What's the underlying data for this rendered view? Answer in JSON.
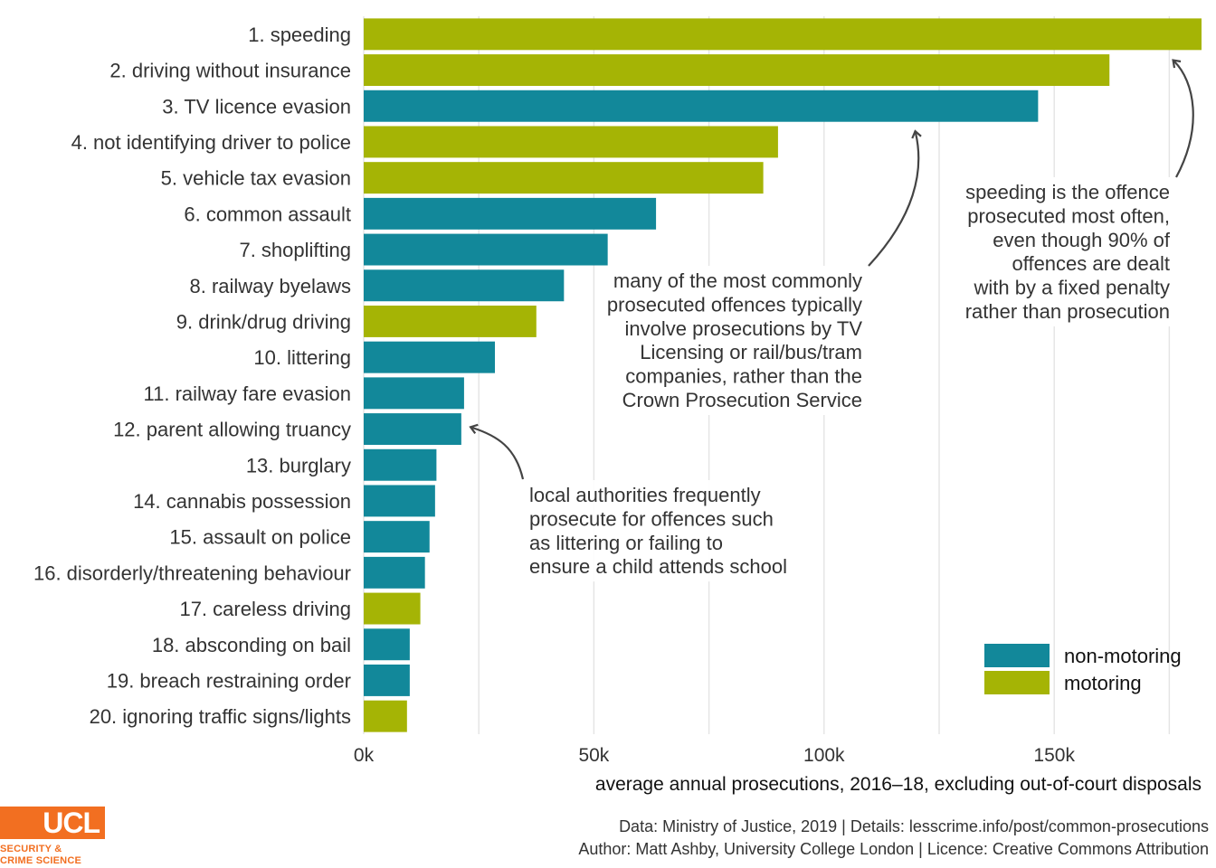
{
  "chart_data": {
    "type": "bar",
    "orientation": "horizontal",
    "categories": [
      "1. speeding",
      "2. driving without insurance",
      "3. TV licence evasion",
      "4. not identifying driver to police",
      "5. vehicle tax evasion",
      "6. common assault",
      "7. shoplifting",
      "8. railway byelaws",
      "9. drink/drug driving",
      "10. littering",
      "11. railway fare evasion",
      "12. parent allowing truancy",
      "13. burglary",
      "14. cannabis possession",
      "15. assault on police",
      "16. disorderly/threatening behaviour",
      "17. careless driving",
      "18. absconding on bail",
      "19. breach restraining order",
      "20. ignoring traffic signs/lights"
    ],
    "values": [
      182000,
      162000,
      146500,
      90000,
      86800,
      63500,
      53000,
      43500,
      37500,
      28500,
      21800,
      21200,
      15800,
      15500,
      14300,
      13300,
      12300,
      10000,
      10000,
      9400
    ],
    "groups": [
      "motoring",
      "motoring",
      "non-motoring",
      "motoring",
      "motoring",
      "non-motoring",
      "non-motoring",
      "non-motoring",
      "motoring",
      "non-motoring",
      "non-motoring",
      "non-motoring",
      "non-motoring",
      "non-motoring",
      "non-motoring",
      "non-motoring",
      "motoring",
      "non-motoring",
      "non-motoring",
      "motoring"
    ],
    "legend": {
      "placement": "bottom-right",
      "entries": [
        {
          "name": "non-motoring",
          "color": "#12889a"
        },
        {
          "name": "motoring",
          "color": "#a5b405"
        }
      ]
    },
    "xlabel": "average annual prosecutions, 2016–18, excluding out-of-court disposals",
    "xlim": [
      0,
      182000
    ],
    "xticks": [
      {
        "value": 0,
        "label": "0k"
      },
      {
        "value": 50000,
        "label": "50k"
      },
      {
        "value": 100000,
        "label": "100k"
      },
      {
        "value": 150000,
        "label": "150k"
      }
    ],
    "grid": true,
    "annotations": [
      {
        "name": "speeding",
        "lines": [
          "speeding is the offence",
          "prosecuted most often,",
          "even though 90% of",
          "offences are dealt",
          "with by a fixed penalty",
          "rather than prosecution"
        ]
      },
      {
        "name": "commonly-prosecuted",
        "lines": [
          "many of the most commonly",
          "prosecuted offences typically",
          "involve prosecutions by TV",
          "Licensing or rail/bus/tram",
          "companies, rather than the",
          "Crown Prosecution Service"
        ]
      },
      {
        "name": "local-authorities",
        "lines": [
          "local authorities frequently",
          "prosecute for offences such",
          "as littering or failing to",
          "ensure a child attends school"
        ]
      }
    ]
  },
  "caption": {
    "line1": "Data: Ministry of Justice, 2019 |  Details: lesscrime.info/post/common-prosecutions",
    "line2": "Author: Matt Ashby, University College London |  Licence: Creative Commons Attribution"
  },
  "logo": {
    "wordmark": "UCL",
    "subtitle_line1": "SECURITY &",
    "subtitle_line2": "CRIME SCIENCE",
    "color": "#f26f21"
  }
}
